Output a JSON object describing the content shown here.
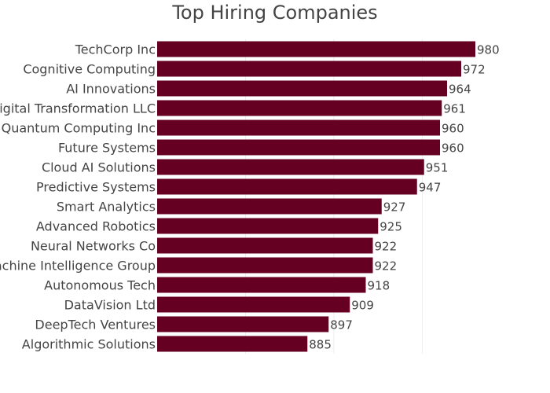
{
  "chart_data": {
    "type": "bar",
    "orientation": "horizontal",
    "title": "Top Hiring Companies",
    "xlabel": "",
    "ylabel": "",
    "xlim": [
      800,
      1000
    ],
    "grid": true,
    "legend": "none",
    "bar_color": "#660022",
    "categories": [
      "TechCorp Inc",
      "Cognitive Computing",
      "AI Innovations",
      "Digital Transformation LLC",
      "Quantum Computing Inc",
      "Future Systems",
      "Cloud AI Solutions",
      "Predictive Systems",
      "Smart Analytics",
      "Advanced Robotics",
      "Neural Networks Co",
      "Machine Intelligence Group",
      "Autonomous Tech",
      "DataVision Ltd",
      "DeepTech Ventures",
      "Algorithmic Solutions"
    ],
    "values": [
      980,
      972,
      964,
      961,
      960,
      960,
      951,
      947,
      927,
      925,
      922,
      922,
      918,
      909,
      897,
      885
    ]
  }
}
